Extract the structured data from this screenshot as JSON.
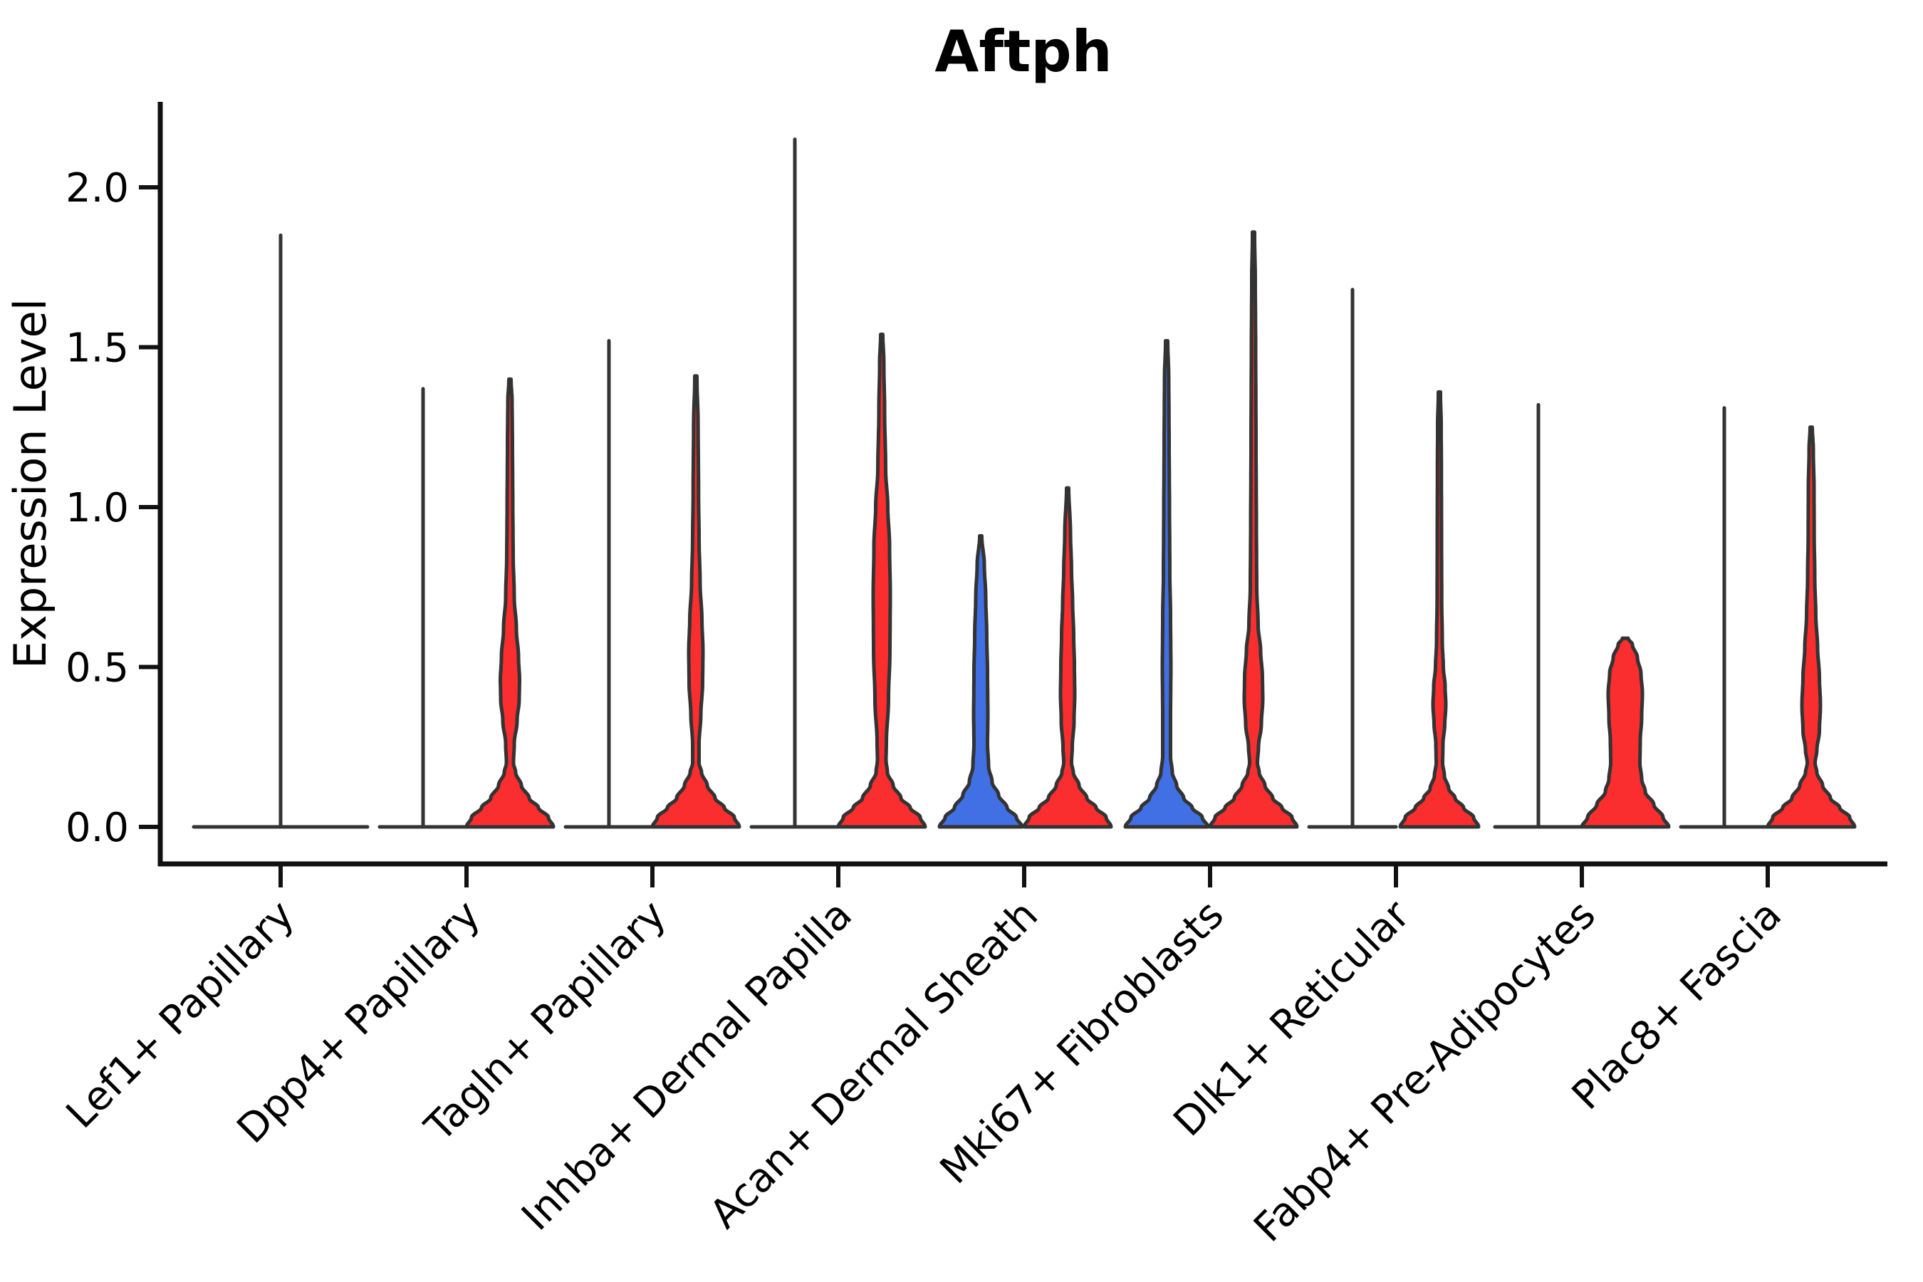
{
  "figure": {
    "title": "Aftph",
    "ylabel": "Expression Level"
  },
  "chart_data": {
    "type": "violin",
    "title": "Aftph",
    "xlabel": "",
    "ylabel": "Expression Level",
    "grid": false,
    "legend": null,
    "ylim": [
      -0.12,
      2.27
    ],
    "ytick_labels": [
      "0.0",
      "0.5",
      "1.0",
      "1.5",
      "2.0"
    ],
    "ytick_values": [
      0.0,
      0.5,
      1.0,
      1.5,
      2.0
    ],
    "group_colors": {
      "blue": "#4170E4",
      "red": "#FA2E2E"
    },
    "outline_color": "#333333",
    "axis_color": "#111111",
    "categories": [
      "Lef1+ Papillary",
      "Dpp4+ Papillary",
      "Tagln+ Papillary",
      "Inhba+ Dermal Papilla",
      "Acan+ Dermal Sheath",
      "Mki67+ Fibroblasts",
      "Dlk1+ Reticular",
      "Fabp4+ Pre-Adipocytes",
      "Plac8+ Fascia"
    ],
    "violins": [
      {
        "category": 0,
        "side": "full",
        "style": "flat",
        "color": null,
        "max_expression": 1.85
      },
      {
        "category": 1,
        "side": "left",
        "style": "flat",
        "color": null,
        "max_expression": 1.37
      },
      {
        "category": 1,
        "side": "right",
        "style": "violin",
        "color": "red",
        "max_expression": 1.4,
        "profile": [
          [
            0,
            61
          ],
          [
            0.03,
            54
          ],
          [
            0.06,
            40
          ],
          [
            0.09,
            27
          ],
          [
            0.13,
            16
          ],
          [
            0.17,
            8
          ],
          [
            0.2,
            5
          ],
          [
            0.26,
            6
          ],
          [
            0.33,
            10
          ],
          [
            0.4,
            13
          ],
          [
            0.46,
            13.5
          ],
          [
            0.53,
            12
          ],
          [
            0.62,
            9
          ],
          [
            0.72,
            6
          ],
          [
            0.85,
            4.5
          ],
          [
            1.0,
            4
          ],
          [
            1.2,
            3.5
          ],
          [
            1.33,
            3
          ],
          [
            1.4,
            1.5
          ]
        ]
      },
      {
        "category": 2,
        "side": "left",
        "style": "flat",
        "color": null,
        "max_expression": 1.52
      },
      {
        "category": 2,
        "side": "right",
        "style": "violin",
        "color": "red",
        "max_expression": 1.41,
        "profile": [
          [
            0,
            61
          ],
          [
            0.03,
            54
          ],
          [
            0.06,
            40
          ],
          [
            0.09,
            27
          ],
          [
            0.13,
            16
          ],
          [
            0.17,
            8
          ],
          [
            0.2,
            4.5
          ],
          [
            0.26,
            4.5
          ],
          [
            0.35,
            7
          ],
          [
            0.45,
            9.5
          ],
          [
            0.55,
            10
          ],
          [
            0.65,
            8.5
          ],
          [
            0.76,
            6
          ],
          [
            0.9,
            4.5
          ],
          [
            1.05,
            3.8
          ],
          [
            1.25,
            3.2
          ],
          [
            1.41,
            1.5
          ]
        ]
      },
      {
        "category": 3,
        "side": "left",
        "style": "flat",
        "color": null,
        "max_expression": 2.15
      },
      {
        "category": 3,
        "side": "right",
        "style": "violin",
        "color": "red",
        "max_expression": 1.54,
        "profile": [
          [
            0,
            61
          ],
          [
            0.03,
            54
          ],
          [
            0.06,
            40
          ],
          [
            0.09,
            27
          ],
          [
            0.13,
            16
          ],
          [
            0.17,
            8
          ],
          [
            0.21,
            6
          ],
          [
            0.26,
            6.5
          ],
          [
            0.4,
            9.5
          ],
          [
            0.55,
            11.5
          ],
          [
            0.72,
            12
          ],
          [
            0.88,
            11
          ],
          [
            1.0,
            8.5
          ],
          [
            1.12,
            5.5
          ],
          [
            1.3,
            4
          ],
          [
            1.45,
            3
          ],
          [
            1.54,
            1.5
          ]
        ]
      },
      {
        "category": 4,
        "side": "left",
        "style": "violin",
        "color": "blue",
        "max_expression": 0.91,
        "profile": [
          [
            0,
            58
          ],
          [
            0.03,
            50
          ],
          [
            0.06,
            37
          ],
          [
            0.1,
            25
          ],
          [
            0.14,
            16
          ],
          [
            0.19,
            11
          ],
          [
            0.26,
            9.5
          ],
          [
            0.35,
            10
          ],
          [
            0.48,
            9.5
          ],
          [
            0.6,
            8.5
          ],
          [
            0.72,
            7
          ],
          [
            0.82,
            5
          ],
          [
            0.91,
            1.5
          ]
        ]
      },
      {
        "category": 4,
        "side": "right",
        "style": "violin",
        "color": "red",
        "max_expression": 1.06,
        "profile": [
          [
            0,
            61
          ],
          [
            0.03,
            54
          ],
          [
            0.06,
            40
          ],
          [
            0.09,
            27
          ],
          [
            0.13,
            16
          ],
          [
            0.17,
            8
          ],
          [
            0.2,
            5.5
          ],
          [
            0.25,
            6.5
          ],
          [
            0.33,
            9
          ],
          [
            0.42,
            10
          ],
          [
            0.5,
            9.5
          ],
          [
            0.6,
            8.5
          ],
          [
            0.7,
            7
          ],
          [
            0.8,
            5.5
          ],
          [
            0.92,
            4
          ],
          [
            1.06,
            1.5
          ]
        ]
      },
      {
        "category": 5,
        "side": "left",
        "style": "violin",
        "color": "blue",
        "max_expression": 1.52,
        "profile": [
          [
            0,
            58
          ],
          [
            0.03,
            50
          ],
          [
            0.06,
            36
          ],
          [
            0.09,
            24
          ],
          [
            0.13,
            14
          ],
          [
            0.17,
            8
          ],
          [
            0.22,
            5.5
          ],
          [
            0.35,
            5.5
          ],
          [
            0.5,
            6
          ],
          [
            0.65,
            5.5
          ],
          [
            0.8,
            4.5
          ],
          [
            1.0,
            4
          ],
          [
            1.2,
            3.5
          ],
          [
            1.4,
            3
          ],
          [
            1.52,
            1.5
          ]
        ]
      },
      {
        "category": 5,
        "side": "right",
        "style": "violin",
        "color": "red",
        "max_expression": 1.86,
        "profile": [
          [
            0,
            61
          ],
          [
            0.03,
            54
          ],
          [
            0.06,
            40
          ],
          [
            0.09,
            27
          ],
          [
            0.13,
            16
          ],
          [
            0.17,
            8
          ],
          [
            0.2,
            5.5
          ],
          [
            0.25,
            7
          ],
          [
            0.32,
            11
          ],
          [
            0.4,
            13
          ],
          [
            0.47,
            12.5
          ],
          [
            0.55,
            10
          ],
          [
            0.63,
            6.5
          ],
          [
            0.75,
            4.5
          ],
          [
            0.95,
            4
          ],
          [
            1.2,
            3.5
          ],
          [
            1.5,
            3
          ],
          [
            1.7,
            2.5
          ],
          [
            1.86,
            1.5
          ]
        ]
      },
      {
        "category": 6,
        "side": "left",
        "style": "flat",
        "color": null,
        "max_expression": 1.68
      },
      {
        "category": 6,
        "side": "right",
        "style": "violin",
        "color": "red",
        "max_expression": 1.36,
        "profile": [
          [
            0,
            55
          ],
          [
            0.03,
            48
          ],
          [
            0.06,
            34
          ],
          [
            0.09,
            22
          ],
          [
            0.12,
            13
          ],
          [
            0.16,
            7
          ],
          [
            0.2,
            4.5
          ],
          [
            0.26,
            5
          ],
          [
            0.32,
            7.5
          ],
          [
            0.38,
            9
          ],
          [
            0.44,
            8
          ],
          [
            0.5,
            5.5
          ],
          [
            0.58,
            4
          ],
          [
            0.72,
            3.2
          ],
          [
            0.9,
            3
          ],
          [
            1.1,
            2.8
          ],
          [
            1.25,
            2.5
          ],
          [
            1.36,
            1.5
          ]
        ]
      },
      {
        "category": 7,
        "side": "left",
        "style": "flat",
        "color": null,
        "max_expression": 1.32
      },
      {
        "category": 7,
        "side": "right",
        "style": "violin",
        "color": "red",
        "max_expression": 0.59,
        "profile": [
          [
            0,
            61
          ],
          [
            0.03,
            53
          ],
          [
            0.07,
            40
          ],
          [
            0.11,
            28
          ],
          [
            0.15,
            23
          ],
          [
            0.2,
            20.5
          ],
          [
            0.27,
            21
          ],
          [
            0.34,
            23
          ],
          [
            0.42,
            24
          ],
          [
            0.48,
            22
          ],
          [
            0.53,
            17
          ],
          [
            0.57,
            10
          ],
          [
            0.59,
            4
          ]
        ]
      },
      {
        "category": 8,
        "side": "left",
        "style": "flat",
        "color": null,
        "max_expression": 1.31
      },
      {
        "category": 8,
        "side": "right",
        "style": "violin",
        "color": "red",
        "max_expression": 1.25,
        "profile": [
          [
            0,
            61
          ],
          [
            0.03,
            54
          ],
          [
            0.06,
            40
          ],
          [
            0.09,
            27
          ],
          [
            0.13,
            16
          ],
          [
            0.17,
            8
          ],
          [
            0.2,
            5.5
          ],
          [
            0.24,
            8
          ],
          [
            0.3,
            11.5
          ],
          [
            0.38,
            13
          ],
          [
            0.47,
            11.5
          ],
          [
            0.56,
            9
          ],
          [
            0.66,
            6.5
          ],
          [
            0.78,
            5
          ],
          [
            0.92,
            4.2
          ],
          [
            1.05,
            4
          ],
          [
            1.18,
            3
          ],
          [
            1.25,
            1.5
          ]
        ]
      }
    ]
  }
}
